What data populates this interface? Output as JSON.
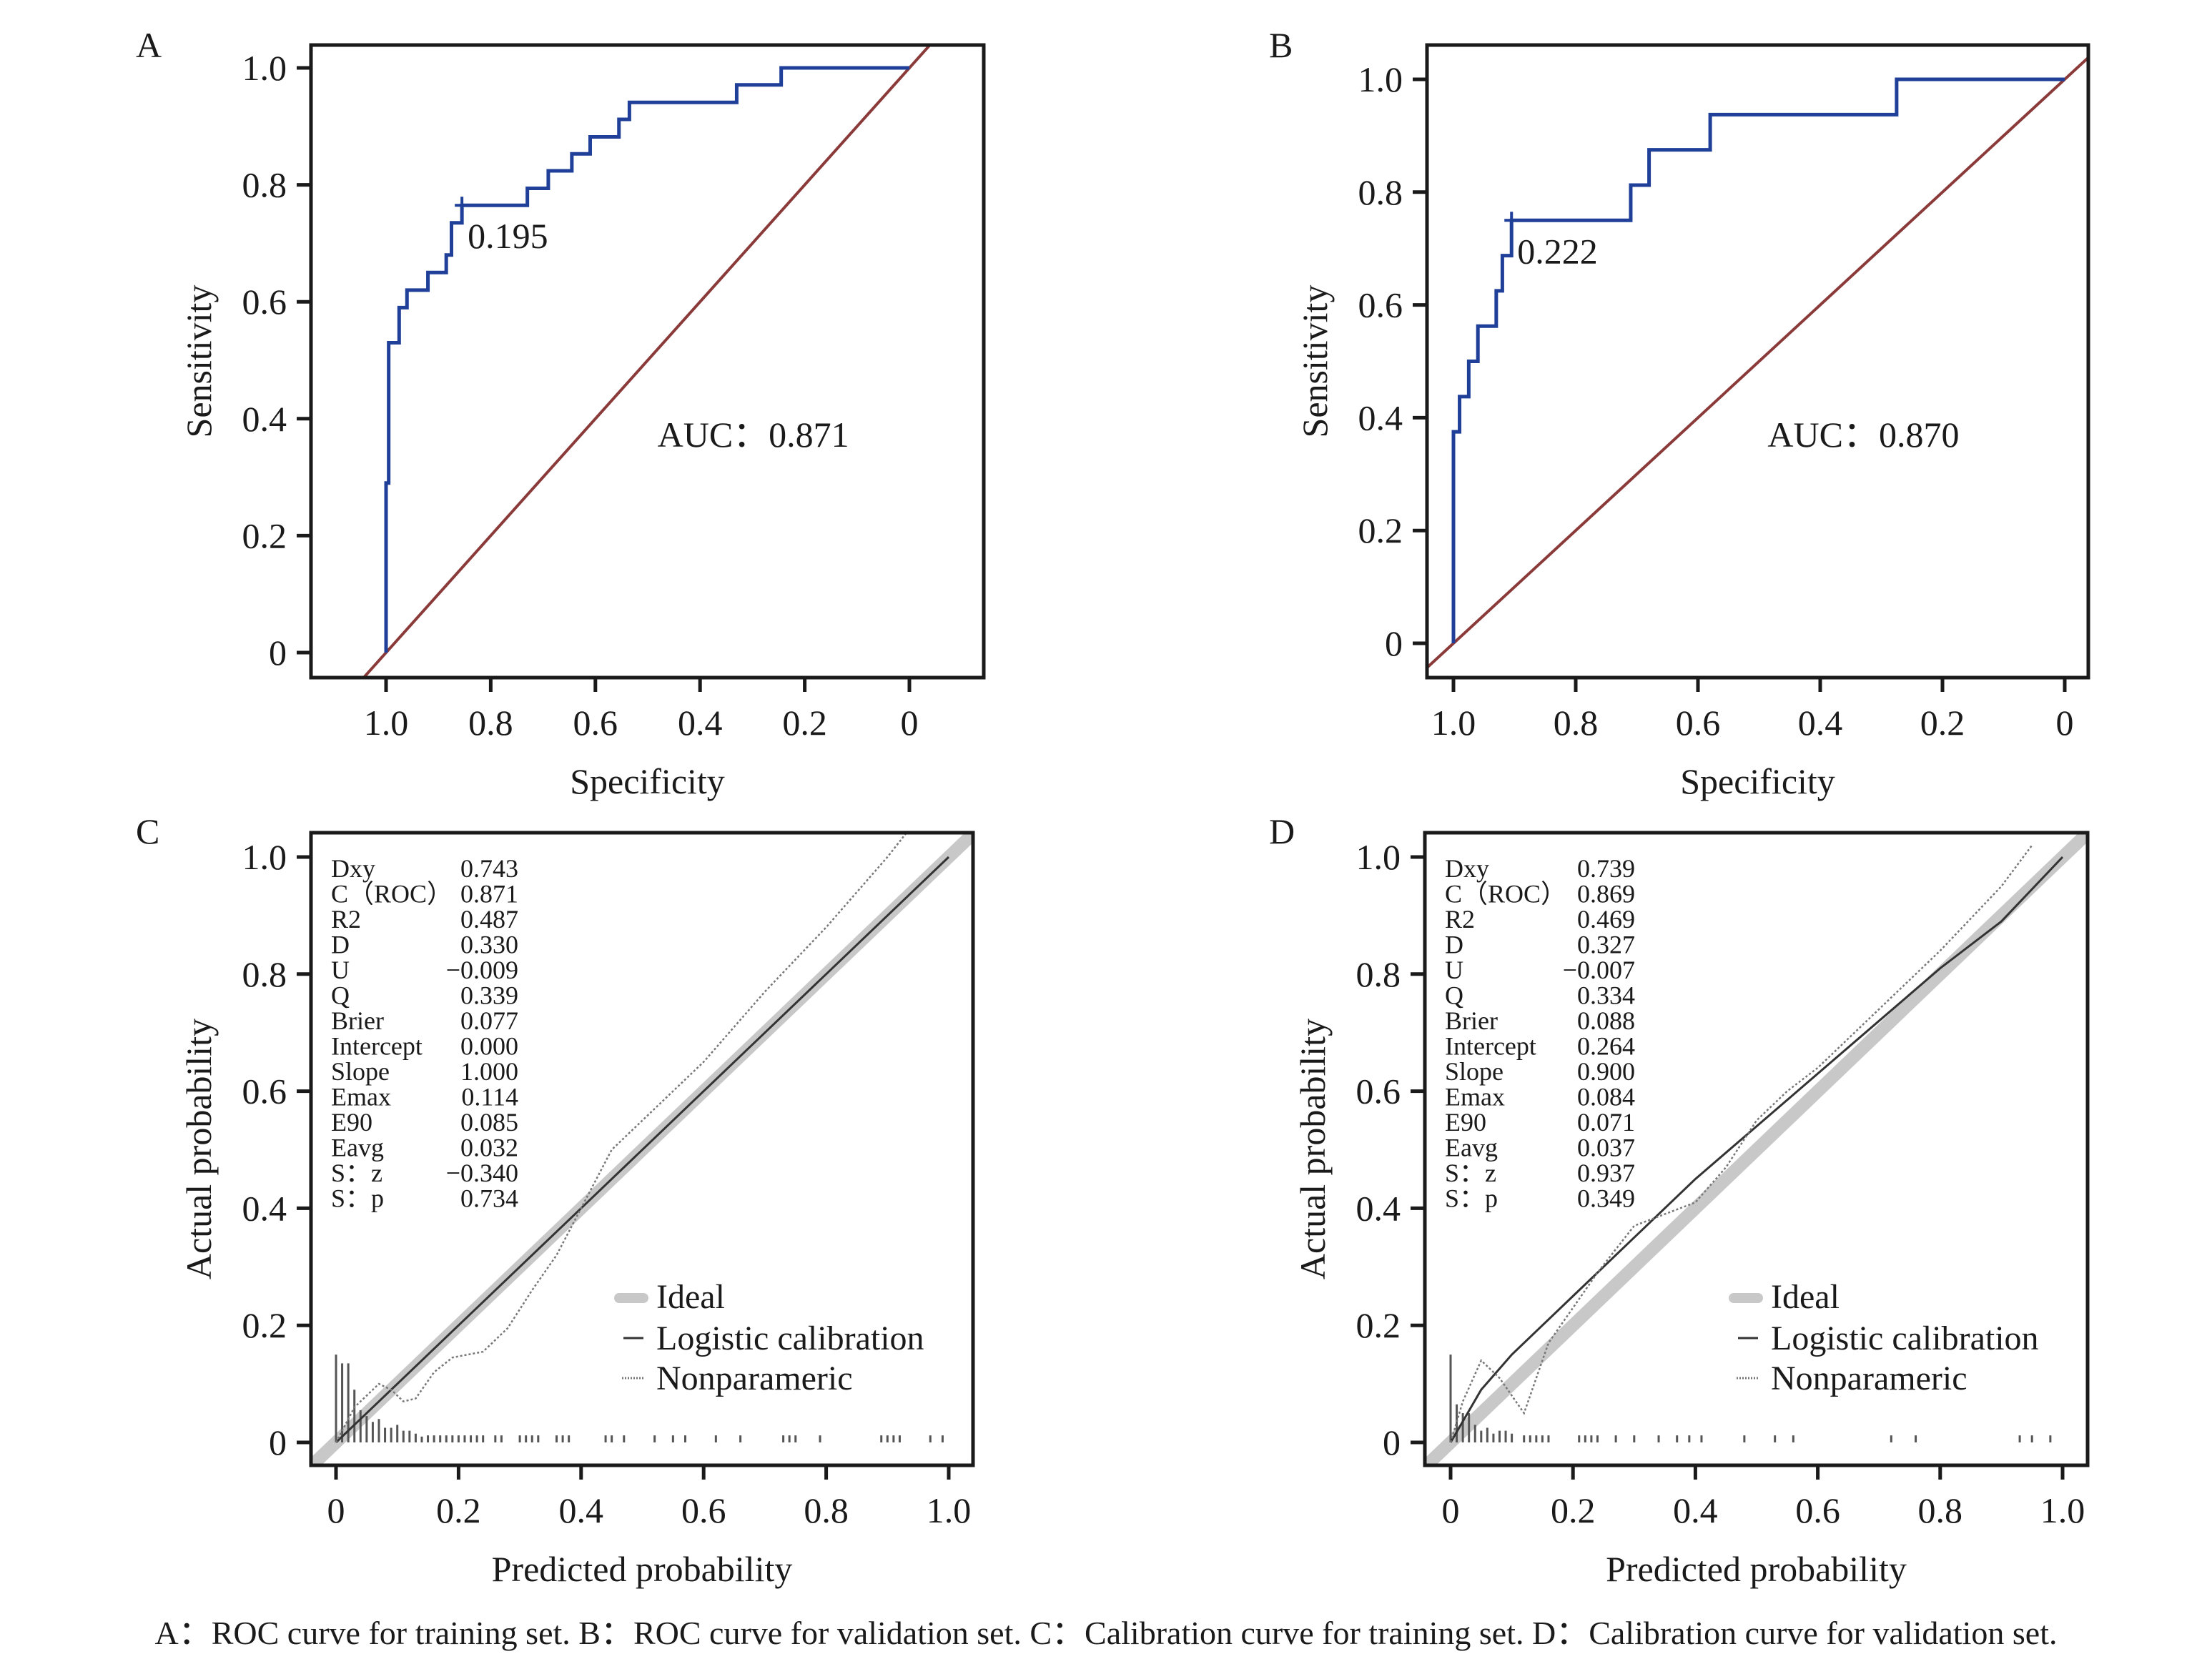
{
  "caption": "A：ROC curve for training set. B：ROC curve for validation set. C：Calibration curve for training set. D：Calibration curve for validation set.",
  "colors": {
    "roc_curve": "#1f3f99",
    "reference_line": "#8b3a3a",
    "ideal": "#c8c8c8",
    "logistic": "#333333",
    "nonparametric": "#777777",
    "rug": "#555555",
    "axis": "#1a1a1a"
  },
  "chart_data": [
    {
      "panel": "A",
      "type": "line",
      "title": "",
      "xlabel": "Specificity",
      "ylabel": "Sensitivity",
      "xlim": [
        1.0,
        0
      ],
      "ylim": [
        0,
        1.0
      ],
      "x_reversed": true,
      "x_ticks": [
        "1.0",
        "0.8",
        "0.6",
        "0.4",
        "0.2",
        "0"
      ],
      "y_ticks": [
        "0",
        "0.2",
        "0.4",
        "0.6",
        "0.8",
        "1.0"
      ],
      "series": [
        {
          "name": "ROC",
          "style": "step",
          "x": [
            1.0,
            1.0,
            0.995,
            0.995,
            0.975,
            0.975,
            0.96,
            0.96,
            0.92,
            0.92,
            0.885,
            0.885,
            0.875,
            0.875,
            0.855,
            0.855,
            0.73,
            0.73,
            0.69,
            0.69,
            0.645,
            0.645,
            0.61,
            0.61,
            0.555,
            0.555,
            0.535,
            0.535,
            0.33,
            0.33,
            0.245,
            0.245,
            0
          ],
          "y": [
            0,
            0.29,
            0.29,
            0.53,
            0.53,
            0.59,
            0.59,
            0.62,
            0.62,
            0.65,
            0.65,
            0.68,
            0.68,
            0.735,
            0.735,
            0.765,
            0.765,
            0.794,
            0.794,
            0.824,
            0.824,
            0.853,
            0.853,
            0.882,
            0.882,
            0.912,
            0.912,
            0.941,
            0.941,
            0.971,
            0.971,
            1.0,
            1.0
          ]
        },
        {
          "name": "Reference",
          "style": "diagonal",
          "x": [
            1.05,
            -0.04
          ],
          "y": [
            -0.05,
            1.04
          ]
        }
      ],
      "cutoff_point": {
        "specificity": 0.855,
        "sensitivity": 0.765,
        "label": "0.195"
      },
      "annotation": "AUC：0.871"
    },
    {
      "panel": "B",
      "type": "line",
      "title": "",
      "xlabel": "Specificity",
      "ylabel": "Sensitivity",
      "xlim": [
        1.0,
        0
      ],
      "ylim": [
        0,
        1.0
      ],
      "x_reversed": true,
      "x_ticks": [
        "1.0",
        "0.8",
        "0.6",
        "0.4",
        "0.2",
        "0"
      ],
      "y_ticks": [
        "0",
        "0.2",
        "0.4",
        "0.6",
        "0.8",
        "1.0"
      ],
      "series": [
        {
          "name": "ROC",
          "style": "step",
          "x": [
            1.0,
            1.0,
            0.99,
            0.99,
            0.975,
            0.975,
            0.96,
            0.96,
            0.93,
            0.93,
            0.92,
            0.92,
            0.905,
            0.905,
            0.71,
            0.71,
            0.68,
            0.68,
            0.58,
            0.58,
            0.275,
            0.275,
            0
          ],
          "y": [
            0,
            0.375,
            0.375,
            0.4375,
            0.4375,
            0.5,
            0.5,
            0.5625,
            0.5625,
            0.625,
            0.625,
            0.6875,
            0.6875,
            0.75,
            0.75,
            0.8125,
            0.8125,
            0.875,
            0.875,
            0.9375,
            0.9375,
            1.0,
            1.0
          ]
        },
        {
          "name": "Reference",
          "style": "diagonal",
          "x": [
            1.043,
            -0.038
          ],
          "y": [
            -0.043,
            1.038
          ]
        }
      ],
      "cutoff_point": {
        "specificity": 0.905,
        "sensitivity": 0.75,
        "label": "0.222"
      },
      "annotation": "AUC：0.870"
    },
    {
      "panel": "C",
      "type": "line",
      "title": "",
      "xlabel": "Predicted probability",
      "ylabel": "Actual probability",
      "xlim": [
        0,
        1.0
      ],
      "ylim": [
        0,
        1.0
      ],
      "x_ticks": [
        "0",
        "0.2",
        "0.4",
        "0.6",
        "0.8",
        "1.0"
      ],
      "y_ticks": [
        "0",
        "0.2",
        "0.4",
        "0.6",
        "0.8",
        "1.0"
      ],
      "legend": {
        "position": "bottom-right",
        "entries": [
          "Ideal",
          "Logistic calibration",
          "Nonparameric"
        ]
      },
      "series": [
        {
          "name": "Ideal",
          "x": [
            -0.04,
            1.04
          ],
          "y": [
            -0.04,
            1.04
          ]
        },
        {
          "name": "Logistic calibration",
          "x": [
            0,
            0.2,
            0.4,
            0.6,
            0.8,
            1.0
          ],
          "y": [
            0,
            0.2,
            0.4,
            0.6,
            0.8,
            1.0
          ]
        },
        {
          "name": "Nonparameric",
          "x": [
            0,
            0.03,
            0.07,
            0.09,
            0.11,
            0.13,
            0.16,
            0.19,
            0.24,
            0.28,
            0.32,
            0.36,
            0.4,
            0.45,
            0.5,
            0.55,
            0.6,
            0.7,
            0.8,
            0.9,
            0.93
          ],
          "y": [
            0,
            0.06,
            0.1,
            0.09,
            0.07,
            0.075,
            0.12,
            0.145,
            0.155,
            0.195,
            0.26,
            0.32,
            0.4,
            0.5,
            0.55,
            0.6,
            0.65,
            0.77,
            0.88,
            1.0,
            1.04
          ]
        }
      ],
      "rug": {
        "tall": [
          [
            0.0,
            0.15
          ],
          [
            0.01,
            0.135
          ],
          [
            0.02,
            0.135
          ],
          [
            0.03,
            0.09
          ],
          [
            0.04,
            0.055
          ],
          [
            0.05,
            0.045
          ],
          [
            0.06,
            0.035
          ],
          [
            0.07,
            0.04
          ],
          [
            0.08,
            0.025
          ],
          [
            0.09,
            0.025
          ],
          [
            0.1,
            0.03
          ],
          [
            0.11,
            0.02
          ],
          [
            0.12,
            0.02
          ],
          [
            0.13,
            0.015
          ],
          [
            0.14,
            0.01
          ]
        ],
        "small": [
          0.15,
          0.16,
          0.17,
          0.18,
          0.19,
          0.2,
          0.21,
          0.22,
          0.23,
          0.24,
          0.26,
          0.27,
          0.3,
          0.31,
          0.32,
          0.33,
          0.36,
          0.37,
          0.38,
          0.44,
          0.45,
          0.47,
          0.52,
          0.55,
          0.57,
          0.62,
          0.66,
          0.73,
          0.74,
          0.75,
          0.79,
          0.89,
          0.9,
          0.91,
          0.92,
          0.97,
          0.99
        ]
      },
      "stats": [
        {
          "label": "Dxy",
          "value": "0.743"
        },
        {
          "label": "C（ROC）",
          "value": "0.871"
        },
        {
          "label": "R2",
          "value": "0.487"
        },
        {
          "label": "D",
          "value": "0.330"
        },
        {
          "label": "U",
          "value": "−0.009"
        },
        {
          "label": "Q",
          "value": "0.339"
        },
        {
          "label": "Brier",
          "value": "0.077"
        },
        {
          "label": "Intercept",
          "value": "0.000"
        },
        {
          "label": "Slope",
          "value": "1.000"
        },
        {
          "label": "Emax",
          "value": "0.114"
        },
        {
          "label": "E90",
          "value": "0.085"
        },
        {
          "label": "Eavg",
          "value": "0.032"
        },
        {
          "label": "S：z",
          "value": "−0.340"
        },
        {
          "label": "S：p",
          "value": "0.734"
        }
      ]
    },
    {
      "panel": "D",
      "type": "line",
      "title": "",
      "xlabel": "Predicted probability",
      "ylabel": "Actual probability",
      "xlim": [
        0,
        1.0
      ],
      "ylim": [
        0,
        1.0
      ],
      "x_ticks": [
        "0",
        "0.2",
        "0.4",
        "0.6",
        "0.8",
        "1.0"
      ],
      "y_ticks": [
        "0",
        "0.2",
        "0.4",
        "0.6",
        "0.8",
        "1.0"
      ],
      "legend": {
        "position": "bottom-right",
        "entries": [
          "Ideal",
          "Logistic calibration",
          "Nonparameric"
        ]
      },
      "series": [
        {
          "name": "Ideal",
          "x": [
            -0.04,
            1.04
          ],
          "y": [
            -0.04,
            1.04
          ]
        },
        {
          "name": "Logistic calibration",
          "x": [
            0,
            0.05,
            0.1,
            0.15,
            0.2,
            0.3,
            0.4,
            0.5,
            0.6,
            0.7,
            0.8,
            0.9,
            1.0
          ],
          "y": [
            0,
            0.09,
            0.15,
            0.2,
            0.25,
            0.35,
            0.45,
            0.54,
            0.63,
            0.72,
            0.81,
            0.89,
            1.0
          ]
        },
        {
          "name": "Nonparameric",
          "x": [
            0,
            0.02,
            0.05,
            0.08,
            0.1,
            0.12,
            0.14,
            0.16,
            0.2,
            0.24,
            0.3,
            0.35,
            0.4,
            0.45,
            0.5,
            0.55,
            0.6,
            0.7,
            0.8,
            0.9,
            0.95
          ],
          "y": [
            0,
            0.07,
            0.14,
            0.11,
            0.08,
            0.05,
            0.11,
            0.17,
            0.23,
            0.29,
            0.37,
            0.39,
            0.41,
            0.47,
            0.55,
            0.6,
            0.64,
            0.74,
            0.84,
            0.95,
            1.02
          ]
        }
      ],
      "rug": {
        "tall": [
          [
            0.0,
            0.15
          ],
          [
            0.01,
            0.065
          ],
          [
            0.02,
            0.05
          ],
          [
            0.03,
            0.05
          ],
          [
            0.04,
            0.03
          ],
          [
            0.05,
            0.02
          ],
          [
            0.06,
            0.025
          ],
          [
            0.07,
            0.015
          ],
          [
            0.08,
            0.02
          ],
          [
            0.09,
            0.02
          ],
          [
            0.1,
            0.015
          ]
        ],
        "small": [
          0.12,
          0.13,
          0.14,
          0.15,
          0.16,
          0.21,
          0.22,
          0.23,
          0.24,
          0.27,
          0.3,
          0.34,
          0.37,
          0.39,
          0.41,
          0.48,
          0.53,
          0.56,
          0.72,
          0.76,
          0.93,
          0.95,
          0.98
        ]
      },
      "stats": [
        {
          "label": "Dxy",
          "value": "0.739"
        },
        {
          "label": "C（ROC）",
          "value": "0.869"
        },
        {
          "label": "R2",
          "value": "0.469"
        },
        {
          "label": "D",
          "value": "0.327"
        },
        {
          "label": "U",
          "value": "−0.007"
        },
        {
          "label": "Q",
          "value": "0.334"
        },
        {
          "label": "Brier",
          "value": "0.088"
        },
        {
          "label": "Intercept",
          "value": "0.264"
        },
        {
          "label": "Slope",
          "value": "0.900"
        },
        {
          "label": "Emax",
          "value": "0.084"
        },
        {
          "label": "E90",
          "value": "0.071"
        },
        {
          "label": "Eavg",
          "value": "0.037"
        },
        {
          "label": "S：z",
          "value": "0.937"
        },
        {
          "label": "S：p",
          "value": "0.349"
        }
      ]
    }
  ]
}
